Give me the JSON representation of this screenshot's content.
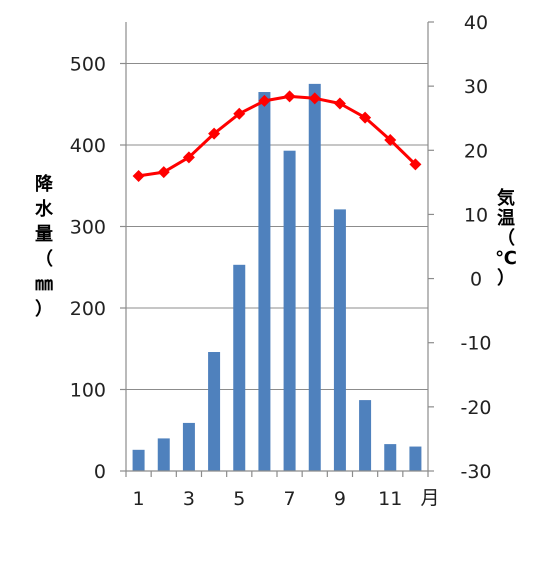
{
  "chart_data": {
    "type": "bar+line",
    "grid": true,
    "categories": [
      "1",
      "2",
      "3",
      "4",
      "5",
      "6",
      "7",
      "8",
      "9",
      "10",
      "11",
      "12"
    ],
    "x_tick_labels": [
      "1",
      "",
      "3",
      "",
      "5",
      "",
      "7",
      "",
      "9",
      "",
      "11",
      ""
    ],
    "x_unit": "月",
    "bar_series": {
      "axis": "left",
      "color": "#4f81bd",
      "values": [
        26,
        40,
        59,
        146,
        253,
        465,
        393,
        475,
        321,
        87,
        33,
        30
      ]
    },
    "line_series": {
      "axis": "right",
      "color": "#ff0000",
      "marker": "diamond",
      "values": [
        16.0,
        16.6,
        18.9,
        22.6,
        25.7,
        27.7,
        28.4,
        28.1,
        27.3,
        25.1,
        21.6,
        17.8
      ]
    },
    "left_axis": {
      "label_chars": [
        "降",
        "水",
        "量",
        "（",
        "㎜",
        "）"
      ],
      "ylim": [
        0,
        500
      ],
      "ticks": [
        "0",
        "100",
        "200",
        "300",
        "400",
        "500"
      ]
    },
    "right_axis": {
      "label_chars": [
        "気",
        "温",
        "（",
        "℃",
        "）"
      ],
      "ylim": [
        -30,
        40
      ],
      "ticks": [
        "-30",
        "-20",
        "-10",
        "0",
        "10",
        "20",
        "30",
        "40"
      ]
    }
  }
}
